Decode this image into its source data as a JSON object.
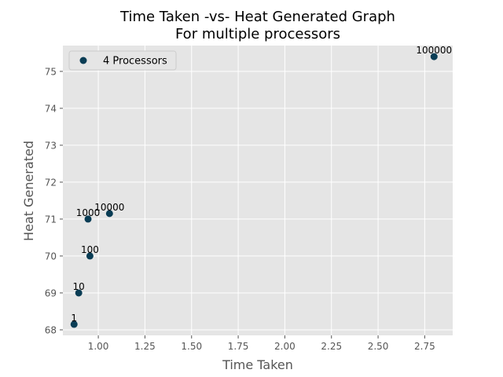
{
  "chart_data": {
    "type": "scatter",
    "title_lines": [
      "Time Taken -vs- Heat Generated Graph",
      "For multiple processors"
    ],
    "xlabel": "Time Taken",
    "ylabel": "Heat Generated",
    "xlim": [
      0.81,
      2.9
    ],
    "ylim": [
      67.85,
      75.7
    ],
    "x_ticks": [
      1.0,
      1.25,
      1.5,
      1.75,
      2.0,
      2.25,
      2.5,
      2.75
    ],
    "x_tick_labels": [
      "1.00",
      "1.25",
      "1.50",
      "1.75",
      "2.00",
      "2.25",
      "2.50",
      "2.75"
    ],
    "y_ticks": [
      68,
      69,
      70,
      71,
      72,
      73,
      74,
      75
    ],
    "y_tick_labels": [
      "68",
      "69",
      "70",
      "71",
      "72",
      "73",
      "74",
      "75"
    ],
    "grid": true,
    "legend_position": "top-left",
    "colors": {
      "background": "#e5e5e5",
      "grid": "#ffffff",
      "marker": "#0a3d55",
      "legend_border": "#cccccc"
    },
    "series": [
      {
        "name": "4 Processors",
        "points": [
          {
            "label": "1",
            "x": 0.87,
            "y": 68.15
          },
          {
            "label": "10",
            "x": 0.895,
            "y": 69.0
          },
          {
            "label": "100",
            "x": 0.955,
            "y": 70.0
          },
          {
            "label": "1000",
            "x": 0.945,
            "y": 71.0
          },
          {
            "label": "10000",
            "x": 1.06,
            "y": 71.15
          },
          {
            "label": "100000",
            "x": 2.8,
            "y": 75.4
          }
        ]
      }
    ]
  }
}
